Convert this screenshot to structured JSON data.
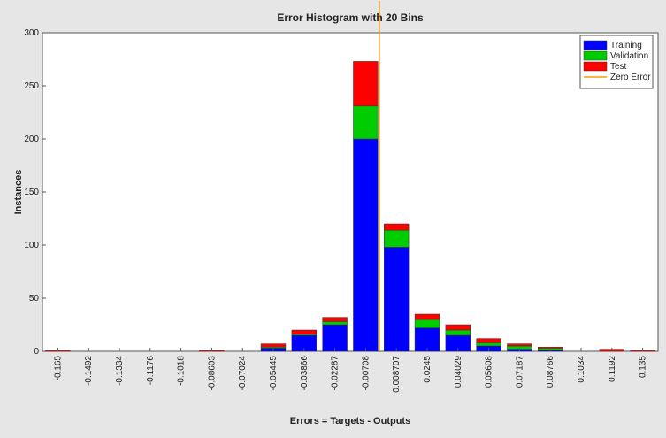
{
  "chart_data": {
    "type": "stacked_bar",
    "title": "Error Histogram with 20 Bins",
    "x_label": "Errors = Targets - Outputs",
    "y_label": "Instances",
    "categories": [
      "-0.165",
      "-0.1492",
      "-0.1334",
      "-0.1176",
      "-0.1018",
      "-0.08603",
      "-0.07024",
      "-0.05445",
      "-0.03866",
      "-0.02287",
      "-0.00708",
      "0.008707",
      "0.0245",
      "0.04029",
      "0.05608",
      "0.07187",
      "0.08766",
      "0.1034",
      "0.1192",
      "0.135"
    ],
    "series": [
      {
        "name": "Training",
        "color": "#0000ff",
        "values": [
          0,
          0,
          0,
          0,
          0,
          0,
          0,
          3,
          15,
          25,
          200,
          98,
          22,
          15,
          5,
          2,
          1,
          0,
          0,
          0
        ]
      },
      {
        "name": "Validation",
        "color": "#00cc00",
        "values": [
          0,
          0,
          0,
          0,
          0,
          0,
          0,
          1,
          1,
          3,
          31,
          16,
          8,
          5,
          3,
          3,
          2,
          0,
          0,
          0
        ]
      },
      {
        "name": "Test",
        "color": "#ff0000",
        "values": [
          1,
          0,
          0,
          0,
          0,
          1,
          0,
          3,
          4,
          4,
          42,
          6,
          5,
          5,
          4,
          2,
          1,
          0,
          2,
          1
        ]
      }
    ],
    "reference_line": {
      "name": "Zero Error",
      "value": 0,
      "color": "#ff9900"
    },
    "ylim": [
      0,
      300
    ],
    "yticks": [
      0,
      50,
      100,
      150,
      200,
      250,
      300
    ],
    "legend": "top-right"
  }
}
